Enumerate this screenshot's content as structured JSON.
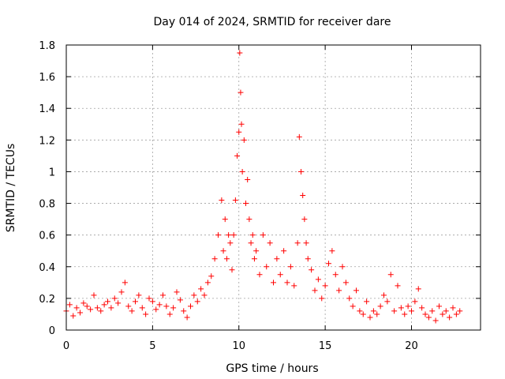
{
  "chart_data": {
    "type": "scatter",
    "title": "Day 014 of 2024, SRMTID for receiver dare",
    "xlabel": "GPS time / hours",
    "ylabel": "SRMTID / TECUs",
    "xlim": [
      0,
      24
    ],
    "ylim": [
      0,
      1.8
    ],
    "xticks": [
      0,
      5,
      10,
      15,
      20
    ],
    "yticks": [
      0,
      0.2,
      0.4,
      0.6,
      0.8,
      1,
      1.2,
      1.4,
      1.6,
      1.8
    ],
    "grid": true,
    "marker": "plus",
    "color": "#ff0000",
    "series": [
      {
        "name": "SRMTID",
        "x": [
          0.0,
          0.2,
          0.4,
          0.6,
          0.8,
          1.0,
          1.2,
          1.4,
          1.6,
          1.8,
          2.0,
          2.2,
          2.4,
          2.6,
          2.8,
          3.0,
          3.2,
          3.4,
          3.6,
          3.8,
          4.0,
          4.2,
          4.4,
          4.6,
          4.8,
          5.0,
          5.2,
          5.4,
          5.6,
          5.8,
          6.0,
          6.2,
          6.4,
          6.6,
          6.8,
          7.0,
          7.2,
          7.4,
          7.6,
          7.8,
          8.0,
          8.2,
          8.4,
          8.6,
          8.8,
          9.0,
          9.1,
          9.2,
          9.3,
          9.4,
          9.5,
          9.6,
          9.7,
          9.8,
          9.9,
          10.0,
          10.05,
          10.1,
          10.15,
          10.2,
          10.3,
          10.4,
          10.5,
          10.6,
          10.7,
          10.8,
          10.9,
          11.0,
          11.2,
          11.4,
          11.6,
          11.8,
          12.0,
          12.2,
          12.4,
          12.6,
          12.8,
          13.0,
          13.2,
          13.4,
          13.5,
          13.6,
          13.7,
          13.8,
          13.9,
          14.0,
          14.2,
          14.4,
          14.6,
          14.8,
          15.0,
          15.2,
          15.4,
          15.6,
          15.8,
          16.0,
          16.2,
          16.4,
          16.6,
          16.8,
          17.0,
          17.2,
          17.4,
          17.6,
          17.8,
          18.0,
          18.2,
          18.4,
          18.6,
          18.8,
          19.0,
          19.2,
          19.4,
          19.6,
          19.8,
          20.0,
          20.2,
          20.4,
          20.6,
          20.8,
          21.0,
          21.2,
          21.4,
          21.6,
          21.8,
          22.0,
          22.2,
          22.4,
          22.6,
          22.8
        ],
        "y": [
          0.12,
          0.16,
          0.09,
          0.14,
          0.11,
          0.17,
          0.15,
          0.13,
          0.22,
          0.14,
          0.12,
          0.16,
          0.18,
          0.14,
          0.2,
          0.17,
          0.24,
          0.3,
          0.15,
          0.12,
          0.18,
          0.22,
          0.14,
          0.1,
          0.2,
          0.18,
          0.13,
          0.16,
          0.22,
          0.15,
          0.1,
          0.14,
          0.24,
          0.19,
          0.12,
          0.08,
          0.15,
          0.22,
          0.18,
          0.26,
          0.22,
          0.3,
          0.34,
          0.45,
          0.6,
          0.82,
          0.5,
          0.7,
          0.45,
          0.6,
          0.55,
          0.38,
          0.6,
          0.82,
          1.1,
          1.25,
          1.75,
          1.5,
          1.3,
          1.0,
          1.2,
          0.8,
          0.95,
          0.7,
          0.55,
          0.6,
          0.45,
          0.5,
          0.35,
          0.6,
          0.4,
          0.55,
          0.3,
          0.45,
          0.35,
          0.5,
          0.3,
          0.4,
          0.28,
          0.55,
          1.22,
          1.0,
          0.85,
          0.7,
          0.55,
          0.45,
          0.38,
          0.25,
          0.32,
          0.2,
          0.28,
          0.42,
          0.5,
          0.35,
          0.25,
          0.4,
          0.3,
          0.2,
          0.15,
          0.25,
          0.12,
          0.1,
          0.18,
          0.08,
          0.12,
          0.1,
          0.15,
          0.22,
          0.18,
          0.35,
          0.12,
          0.28,
          0.14,
          0.1,
          0.15,
          0.12,
          0.18,
          0.26,
          0.14,
          0.1,
          0.08,
          0.12,
          0.06,
          0.15,
          0.1,
          0.12,
          0.08,
          0.14,
          0.1,
          0.12
        ]
      }
    ]
  }
}
